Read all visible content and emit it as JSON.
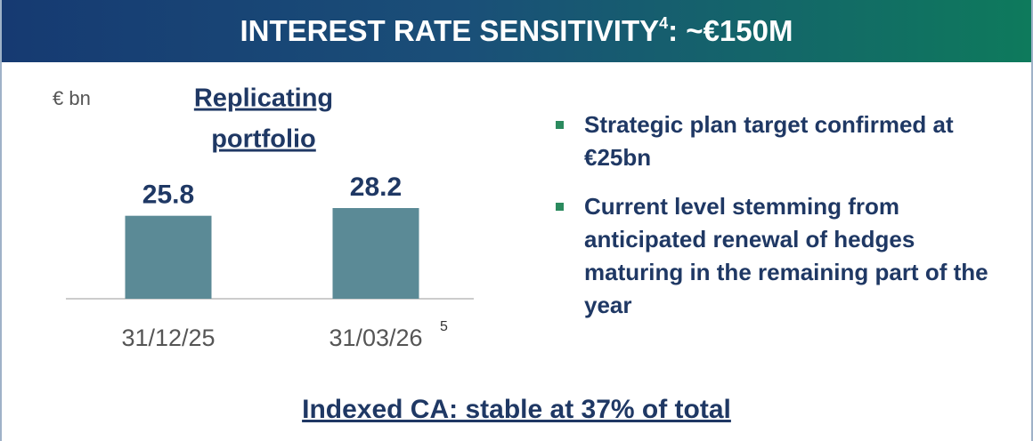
{
  "header": {
    "title": "INTEREST RATE SENSITIVITY",
    "title_note": "4",
    "title_suffix": ": ~€150M"
  },
  "chart_data": {
    "type": "bar",
    "unit": "€ bn",
    "title": [
      "Replicating",
      "portfolio"
    ],
    "categories": [
      "31/12/25",
      "31/03/26"
    ],
    "category_notes": [
      null,
      "5"
    ],
    "values": [
      25.8,
      28.2
    ],
    "color": "#5b8a96"
  },
  "bullets": [
    "Strategic plan target confirmed at €25bn",
    "Current level stemming from anticipated renewal of hedges maturing in the remaining part of the year"
  ],
  "footer": "Indexed CA: stable at 37% of total"
}
